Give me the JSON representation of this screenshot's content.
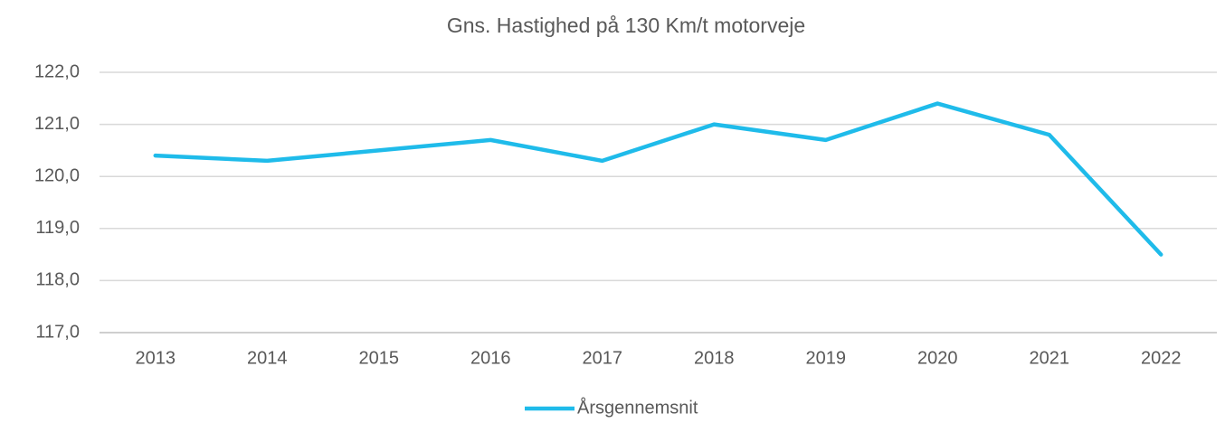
{
  "chart_data": {
    "type": "line",
    "title": "Gns. Hastighed på 130 Km/t motorveje",
    "categories": [
      "2013",
      "2014",
      "2015",
      "2016",
      "2017",
      "2018",
      "2019",
      "2020",
      "2021",
      "2022"
    ],
    "series": [
      {
        "name": "Årsgennemsnit",
        "color": "#1fbbea",
        "values": [
          120.4,
          120.3,
          120.5,
          120.7,
          120.3,
          121.0,
          120.7,
          121.4,
          120.8,
          118.5
        ]
      }
    ],
    "ylim": [
      117,
      122
    ],
    "yticks": [
      {
        "value": 117,
        "label": "117,0"
      },
      {
        "value": 118,
        "label": "118,0"
      },
      {
        "value": 119,
        "label": "119,0"
      },
      {
        "value": 120,
        "label": "120,0"
      },
      {
        "value": 121,
        "label": "121,0"
      },
      {
        "value": 122,
        "label": "122,0"
      }
    ],
    "grid": true,
    "legend": "bottom"
  }
}
